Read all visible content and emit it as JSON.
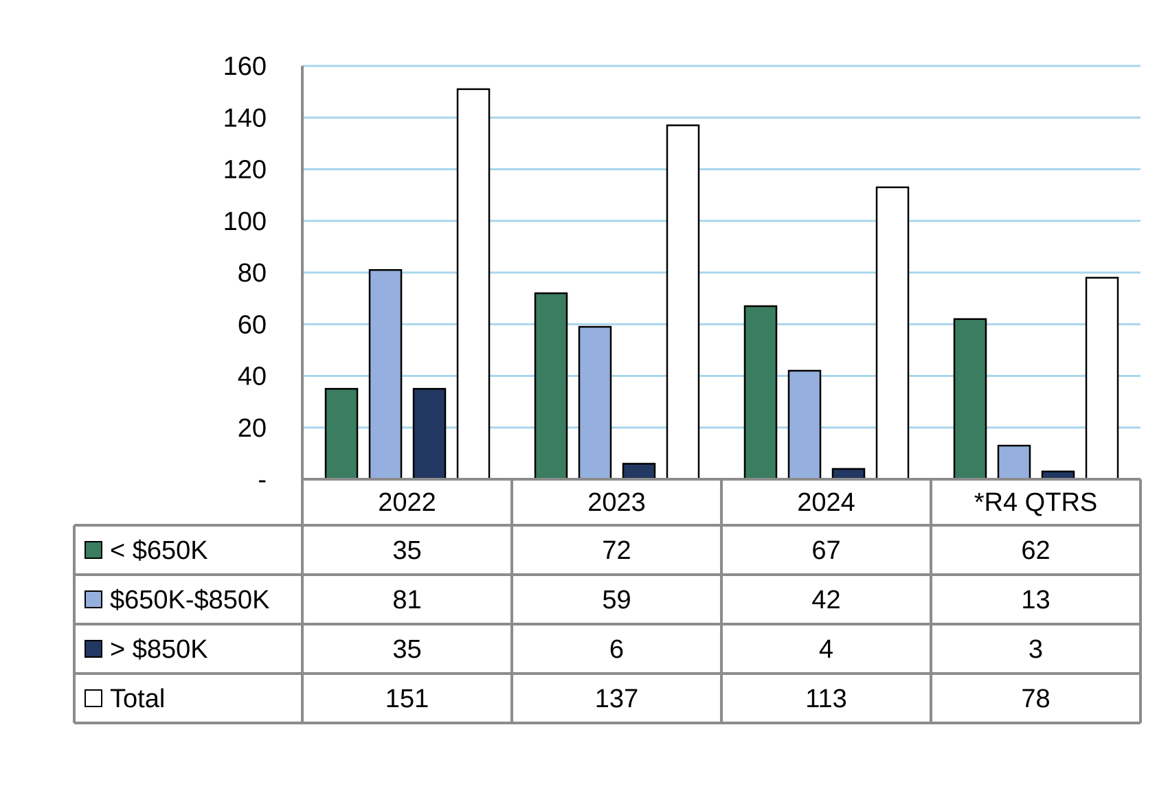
{
  "chart_data": {
    "type": "bar",
    "title": "",
    "xlabel": "",
    "ylabel": "",
    "categories": [
      "2022",
      "2023",
      "2024",
      "*R4 QTRS"
    ],
    "ylim": [
      0,
      160
    ],
    "yticks": [
      0,
      20,
      40,
      60,
      80,
      100,
      120,
      140,
      160
    ],
    "ytick_labels": [
      "-",
      "20",
      "40",
      "60",
      "80",
      "100",
      "120",
      "140",
      "160"
    ],
    "grid": true,
    "legend": "data table below chart",
    "series": [
      {
        "name": "< $650K",
        "values": [
          35,
          72,
          67,
          62
        ],
        "color": "#3a7d60"
      },
      {
        "name": "$650K-$850K",
        "values": [
          81,
          59,
          42,
          13
        ],
        "color": "#95b0de"
      },
      {
        "name": "> $850K",
        "values": [
          35,
          6,
          4,
          3
        ],
        "color": "#223862"
      },
      {
        "name": "Total",
        "values": [
          151,
          137,
          113,
          78
        ],
        "color": "#ffffff"
      }
    ],
    "colors": {
      "grid": "#a9d6ec",
      "table_border": "#8c8c8c",
      "bar_outline": "#000000"
    }
  }
}
